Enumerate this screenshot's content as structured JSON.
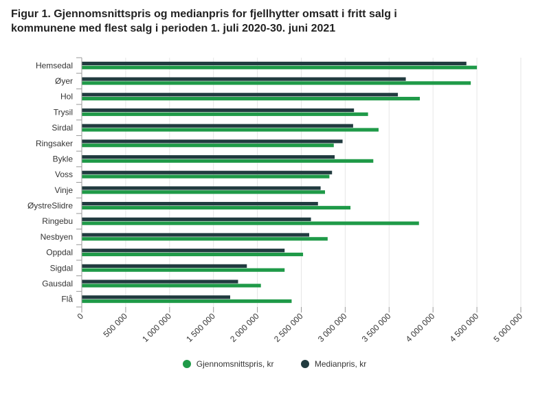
{
  "title_line1": "Figur 1. Gjennomsnittspris og medianpris for fjellhytter omsatt i fritt salg i",
  "title_line2": "kommunene med flest salg i perioden 1. juli 2020-30. juni 2021",
  "colors": {
    "mean": "#1f9a48",
    "median": "#213b3f",
    "grid": "#e6e6e6",
    "axis": "#999999"
  },
  "chart_data": {
    "type": "bar",
    "orientation": "horizontal",
    "categories": [
      "Hemsedal",
      "Øyer",
      "Hol",
      "Trysil",
      "Sirdal",
      "Ringsaker",
      "Bykle",
      "Voss",
      "Vinje",
      "ØystreSlidre",
      "Ringebu",
      "Nesbyen",
      "Oppdal",
      "Sigdal",
      "Gausdal",
      "Flå"
    ],
    "series": [
      {
        "name": "Medianpris, kr",
        "color": "#213b3f",
        "values": [
          4380000,
          3690000,
          3600000,
          3100000,
          3090000,
          2970000,
          2880000,
          2850000,
          2720000,
          2690000,
          2610000,
          2590000,
          2310000,
          1880000,
          1780000,
          1690000
        ]
      },
      {
        "name": "Gjennomsnittspris, kr",
        "color": "#1f9a48",
        "values": [
          4500000,
          4430000,
          3850000,
          3260000,
          3380000,
          2870000,
          3320000,
          2820000,
          2770000,
          3060000,
          3840000,
          2800000,
          2520000,
          2310000,
          2040000,
          2390000
        ]
      }
    ],
    "xlim": [
      0,
      5000000
    ],
    "xticks": [
      "0",
      "500 000",
      "1 000 000",
      "1 500 000",
      "2 000 000",
      "2 500 000",
      "3 000 000",
      "3 500 000",
      "4 000 000",
      "4 500 000",
      "5 000 000"
    ],
    "xtick_values": [
      0,
      500000,
      1000000,
      1500000,
      2000000,
      2500000,
      3000000,
      3500000,
      4000000,
      4500000,
      5000000
    ],
    "legend": [
      "Gjennomsnittspris, kr",
      "Medianpris, kr"
    ],
    "legend_position": "bottom",
    "grid": "vertical"
  }
}
